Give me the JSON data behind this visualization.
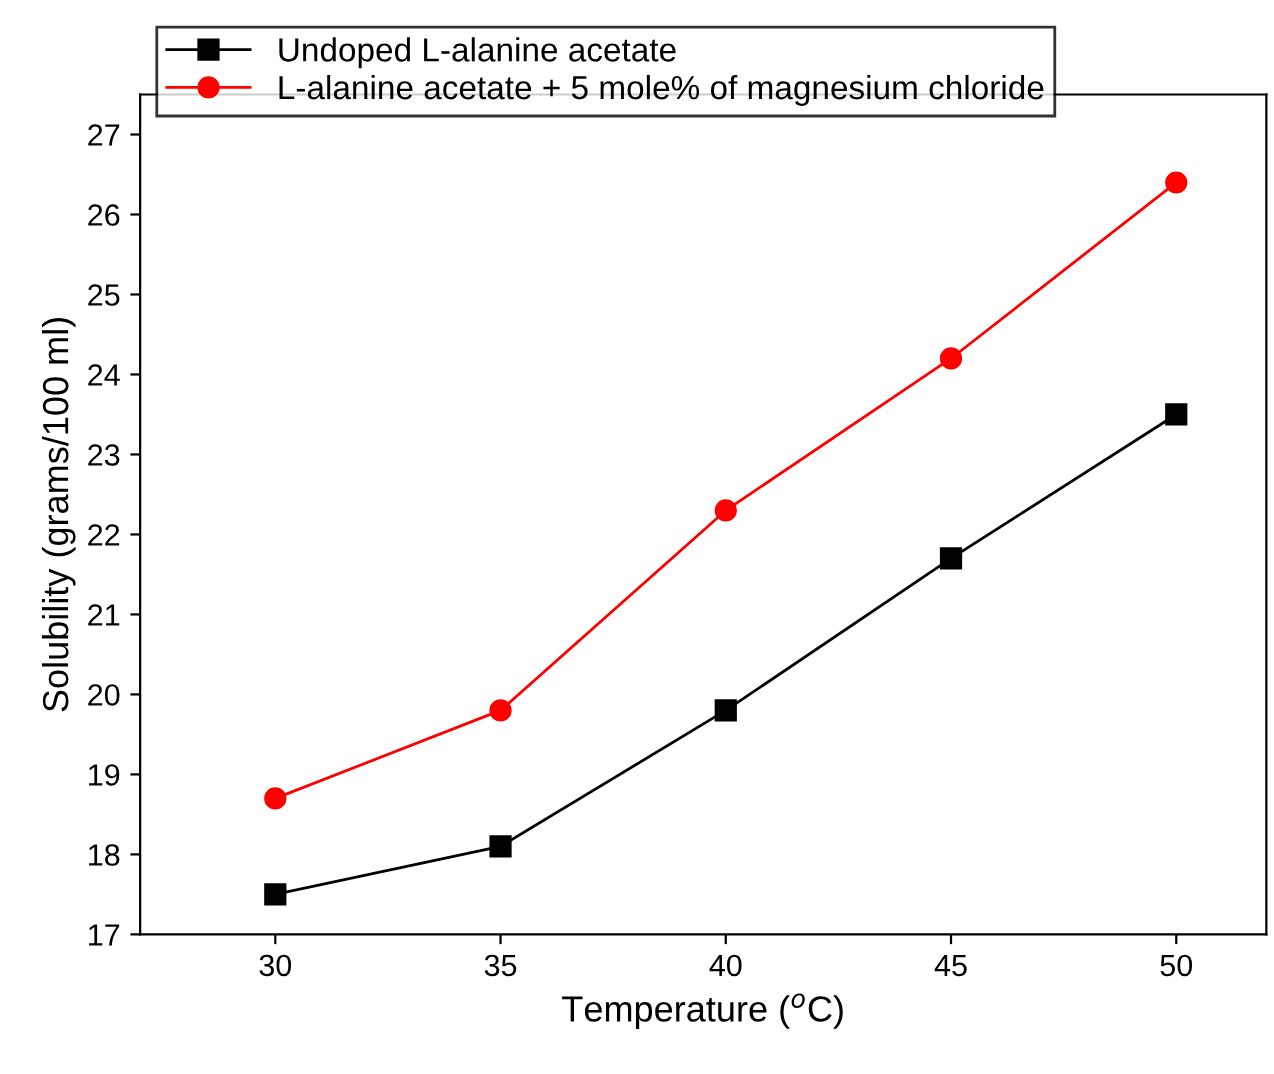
{
  "chart_data": {
    "type": "line",
    "xlabel": "Temperature ($^{o}$C)",
    "ylabel": "Solubility (grams/100 ml)",
    "x": [
      30,
      35,
      40,
      45,
      50
    ],
    "series": [
      {
        "name": "Undoped L-alanine acetate",
        "color": "#000000",
        "marker": "square",
        "values": [
          17.5,
          18.1,
          19.8,
          21.7,
          23.5
        ]
      },
      {
        "name": "L-alanine acetate + 5 mole% of magnesium chloride",
        "color": "#ff0000",
        "marker": "circle",
        "values": [
          18.7,
          19.8,
          22.3,
          24.2,
          26.4
        ]
      }
    ],
    "xlim": [
      27,
      52
    ],
    "xticks": [
      30,
      35,
      40,
      45,
      50
    ],
    "ylim": [
      17,
      27.5
    ],
    "yticks": [
      17,
      18,
      19,
      20,
      21,
      22,
      23,
      24,
      25,
      26,
      27
    ],
    "grid": false,
    "legend": "top left",
    "line_style": "solid"
  }
}
